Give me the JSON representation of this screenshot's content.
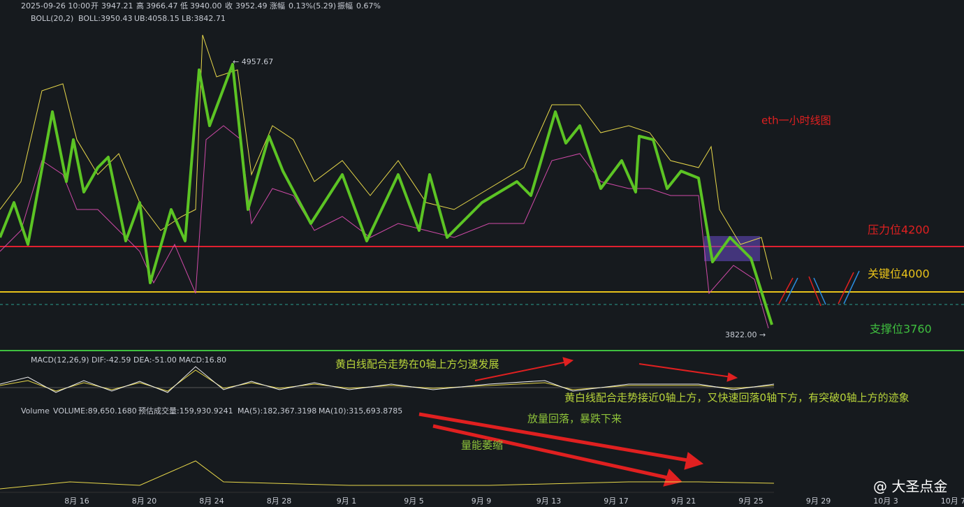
{
  "header": {
    "datetime": "2025-09-26 10:00",
    "open_label": "开",
    "open": "3947.21",
    "high_label": "高",
    "high": "3966.47",
    "low_label": "低",
    "low": "3940.00",
    "close_label": "收",
    "close": "3952.49",
    "change_label": "涨幅",
    "change": "0.13%(5.29)",
    "amp_label": "振幅",
    "amp": "0.67%"
  },
  "boll": {
    "name": "BOLL(20,2)",
    "mid": "BOLL:3950.43",
    "ub": "UB:4058.15",
    "lb": "LB:3842.71"
  },
  "annotations": {
    "max": "← 4957.67",
    "min": "3822.00 →",
    "title": "eth一小时线图",
    "resistance": "压力位4200",
    "key": "关键位4000",
    "support": "支撑位3760",
    "macd_note1": "黄白线配合走势在0轴上方匀速发展",
    "macd_note2": "黄白线配合走势接近0轴上方，又快速回落0轴下方，有突破0轴上方的迹象",
    "vol_note1": "放量回落，暴跌下来",
    "vol_note2": "量能萎缩"
  },
  "macd": {
    "name": "MACD(12,26,9)",
    "dif": "DIF:-42.59",
    "dea": "DEA:-51.00",
    "macd": "MACD:16.80"
  },
  "volume": {
    "name": "Volume",
    "vol": "VOLUME:89,650.1680",
    "est": "预估成交量:159,930.9241",
    "ma5": "MA(5):182,367.3198",
    "ma10": "MA(10):315,693.8785"
  },
  "x_axis": [
    "8月 16",
    "8月 20",
    "8月 24",
    "8月 28",
    "9月 1",
    "9月 5",
    "9月 9",
    "9月 13",
    "9月 17",
    "9月 21",
    "9月 25",
    "9月 29",
    "10月 3",
    "10月 7"
  ],
  "watermark": "@ 大圣点金"
}
